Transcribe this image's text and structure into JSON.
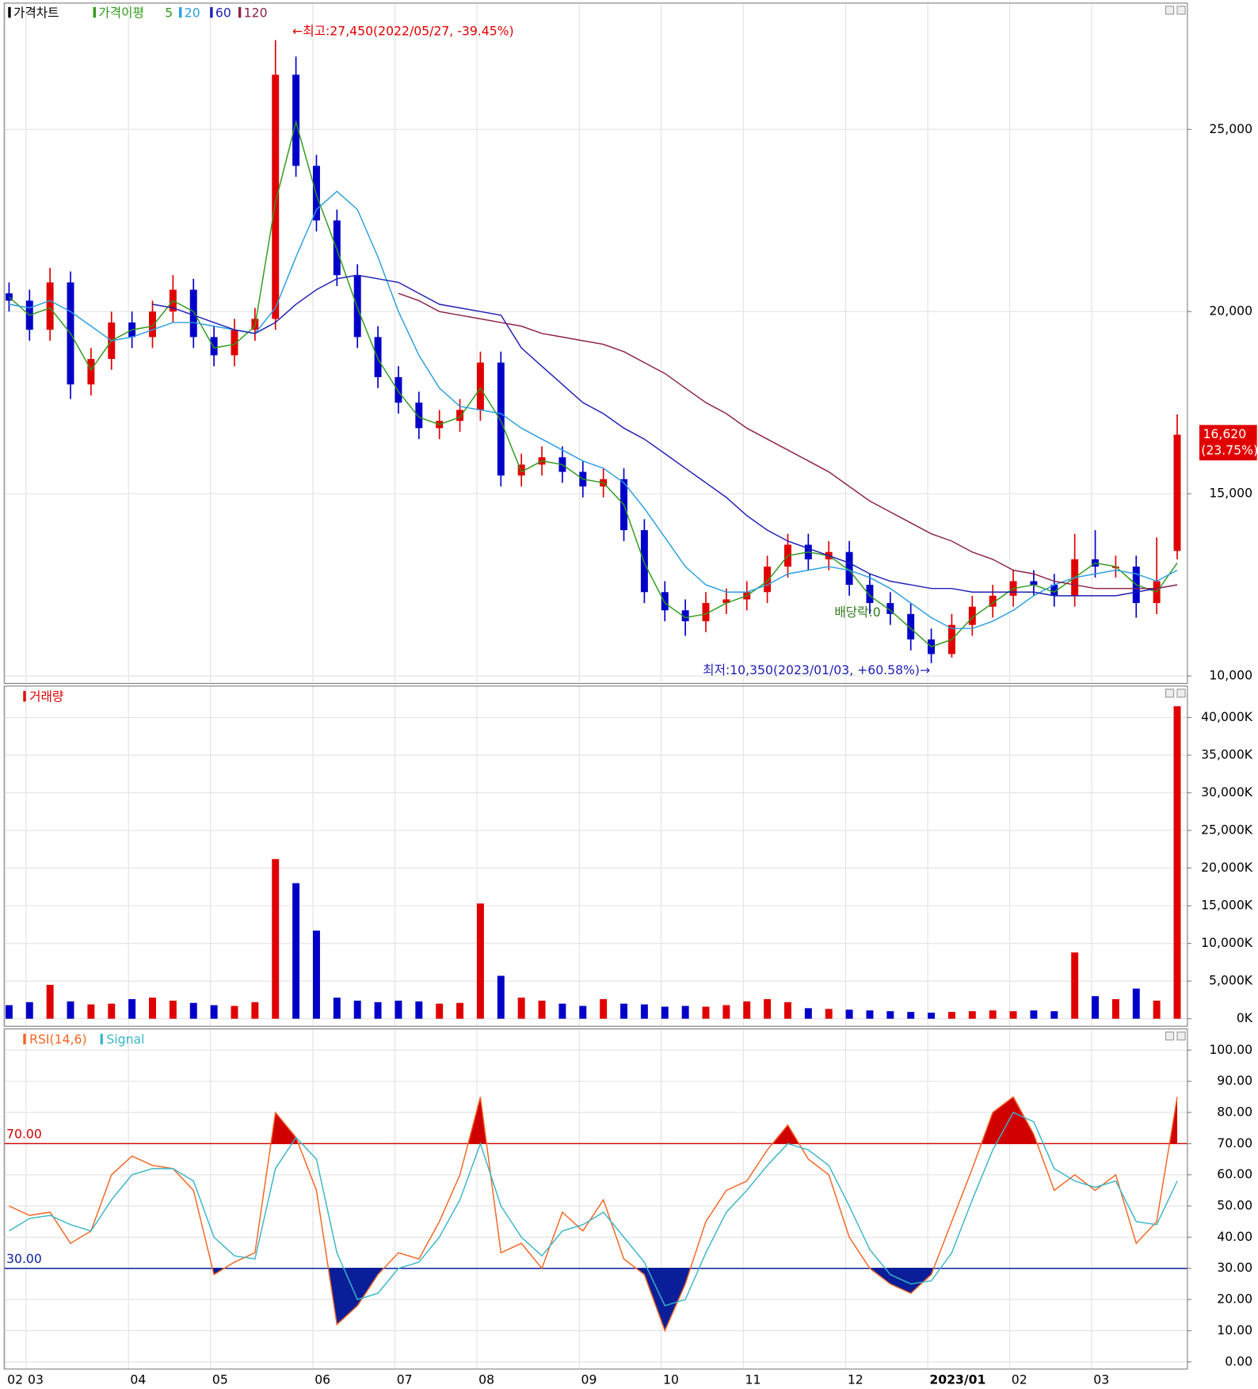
{
  "chart_data": [
    {
      "type": "candlestick",
      "title": "가격차트",
      "ma_title": "가격이평",
      "categories": [
        "02",
        "03",
        null,
        null,
        null,
        null,
        "04",
        null,
        null,
        null,
        "05",
        null,
        null,
        null,
        null,
        "06",
        null,
        null,
        null,
        "07",
        null,
        null,
        null,
        "08",
        null,
        null,
        null,
        null,
        "09",
        null,
        null,
        null,
        "10",
        null,
        null,
        null,
        "11",
        null,
        null,
        null,
        null,
        "12",
        null,
        null,
        null,
        "2023/01",
        null,
        null,
        null,
        "02",
        null,
        null,
        null,
        "03",
        null,
        null,
        null,
        null
      ],
      "open": [
        20500,
        20300,
        19500,
        20800,
        18000,
        18700,
        19700,
        19300,
        20000,
        20600,
        19300,
        18800,
        19500,
        19800,
        26500,
        24000,
        22500,
        21000,
        19300,
        18200,
        17500,
        16800,
        17000,
        17300,
        18600,
        15500,
        15800,
        16000,
        15600,
        15200,
        15400,
        14000,
        12300,
        11800,
        11500,
        12000,
        12100,
        12300,
        13000,
        13600,
        13200,
        13400,
        12500,
        12000,
        11700,
        11000,
        10600,
        11400,
        11900,
        12200,
        12600,
        12500,
        12200,
        13200,
        13000,
        13000,
        12000,
        13430
      ],
      "high": [
        20800,
        20600,
        21200,
        21100,
        19000,
        20000,
        20000,
        20300,
        21000,
        20900,
        19600,
        19800,
        20100,
        27450,
        27000,
        24300,
        22800,
        21300,
        19600,
        18500,
        17800,
        17300,
        17600,
        18900,
        18900,
        16100,
        16300,
        16300,
        15900,
        15700,
        15700,
        14300,
        12600,
        12100,
        12300,
        12400,
        12600,
        13300,
        13900,
        13900,
        13700,
        13700,
        12800,
        12300,
        12000,
        11300,
        11700,
        12200,
        12500,
        12900,
        12900,
        12800,
        13900,
        14000,
        13300,
        13300,
        13800,
        17180
      ],
      "low": [
        20000,
        19200,
        19200,
        17600,
        17700,
        18400,
        19000,
        19000,
        19700,
        19000,
        18500,
        18500,
        19200,
        19500,
        23700,
        22200,
        20700,
        19000,
        17900,
        17200,
        16500,
        16500,
        16700,
        17000,
        15200,
        15200,
        15500,
        15300,
        14900,
        14900,
        13700,
        12000,
        11500,
        11100,
        11200,
        11700,
        11800,
        12000,
        12700,
        12900,
        12900,
        12200,
        11700,
        11400,
        10700,
        10350,
        10500,
        11100,
        11600,
        11900,
        12200,
        11900,
        11900,
        12700,
        12700,
        11600,
        11700,
        13200
      ],
      "close": [
        20300,
        19500,
        20800,
        18000,
        18700,
        19700,
        19300,
        20000,
        20600,
        19300,
        18800,
        19500,
        19800,
        26500,
        24000,
        22500,
        21000,
        19300,
        18200,
        17500,
        16800,
        17000,
        17300,
        18600,
        15500,
        15800,
        16000,
        15600,
        15200,
        15400,
        14000,
        12300,
        11800,
        11500,
        12000,
        12100,
        12300,
        13000,
        13600,
        13200,
        13400,
        12500,
        12000,
        11700,
        11000,
        10600,
        11400,
        11900,
        12200,
        12600,
        12500,
        12200,
        13200,
        13000,
        13000,
        12000,
        12600,
        16620
      ],
      "up_color": "#e00000",
      "down_color": "#0000c8",
      "series": [
        {
          "name": "5",
          "color": "#2f9a1a",
          "values": [
            20400,
            19900,
            20100,
            19400,
            18400,
            19200,
            19500,
            19600,
            20300,
            20000,
            19000,
            19100,
            19600,
            23000,
            25200,
            23200,
            21700,
            20100,
            18700,
            17800,
            17100,
            16900,
            17100,
            17900,
            17000,
            15600,
            15900,
            15800,
            15400,
            15300,
            14700,
            13100,
            12000,
            11600,
            11700,
            12000,
            12200,
            12600,
            13300,
            13400,
            13300,
            12900,
            12200,
            11800,
            11300,
            10800,
            11000,
            11600,
            12000,
            12400,
            12500,
            12300,
            12700,
            13100,
            13000,
            12500,
            12300,
            13100
          ]
        },
        {
          "name": "20",
          "color": "#2a9ee0",
          "values": [
            20200,
            20100,
            20300,
            20000,
            19600,
            19200,
            19300,
            19500,
            19700,
            19700,
            19600,
            19500,
            19400,
            20100,
            21500,
            22800,
            23300,
            22800,
            21500,
            20000,
            18800,
            17900,
            17400,
            17300,
            17200,
            16800,
            16500,
            16200,
            15900,
            15700,
            15300,
            14600,
            13800,
            13000,
            12500,
            12300,
            12300,
            12500,
            12800,
            12900,
            13000,
            12900,
            12700,
            12400,
            12000,
            11600,
            11300,
            11300,
            11500,
            11800,
            12200,
            12500,
            12700,
            12800,
            12900,
            12800,
            12600,
            12900
          ]
        },
        {
          "name": "60",
          "color": "#1e1eb4",
          "values": [
            null,
            null,
            null,
            null,
            null,
            null,
            null,
            20200,
            20100,
            19900,
            19700,
            19500,
            19400,
            19700,
            20200,
            20600,
            20900,
            21000,
            20900,
            20800,
            20500,
            20200,
            20100,
            20000,
            19900,
            19000,
            18500,
            18000,
            17500,
            17200,
            16800,
            16500,
            16100,
            15700,
            15300,
            14900,
            14400,
            14000,
            13700,
            13500,
            13300,
            13100,
            12800,
            12600,
            12500,
            12400,
            12400,
            12300,
            12300,
            12300,
            12300,
            12200,
            12200,
            12200,
            12200,
            12300,
            12400,
            12500
          ]
        },
        {
          "name": "120",
          "color": "#8b2246",
          "values": [
            null,
            null,
            null,
            null,
            null,
            null,
            null,
            null,
            null,
            null,
            null,
            null,
            null,
            null,
            null,
            null,
            null,
            null,
            null,
            20500,
            20300,
            20000,
            19900,
            19800,
            19700,
            19600,
            19400,
            19300,
            19200,
            19100,
            18900,
            18600,
            18300,
            17900,
            17500,
            17200,
            16800,
            16500,
            16200,
            15900,
            15600,
            15200,
            14800,
            14500,
            14200,
            13900,
            13700,
            13400,
            13200,
            12900,
            12800,
            12600,
            12500,
            12400,
            12400,
            12400,
            12400,
            12500
          ]
        }
      ],
      "ylim": [
        9830,
        28430
      ],
      "yticks": [
        {
          "value": 10000,
          "label": "10,000"
        },
        {
          "value": 15000,
          "label": "15,000"
        },
        {
          "value": 20000,
          "label": "20,000"
        },
        {
          "value": 25000,
          "label": "25,000"
        }
      ],
      "grid": true,
      "annotations": [
        {
          "text": "←최고:27,450(2022/05/27, -39.45%)",
          "color": "#e00000"
        },
        {
          "text": "최저:10,350(2023/01/03, +60.58%)→",
          "color": "#1e1eb4"
        },
        {
          "text": "배당락:0",
          "color": "#2f7a1a"
        }
      ],
      "last_price_label": "16,620",
      "last_change_label": "(23.75%)"
    },
    {
      "type": "bar",
      "title": "거래량",
      "color": "#e00000",
      "values": [
        1800,
        2200,
        4500,
        2300,
        1900,
        2000,
        2600,
        2800,
        2400,
        2100,
        1800,
        1700,
        2200,
        21200,
        18000,
        11700,
        2800,
        2400,
        2200,
        2400,
        2300,
        2000,
        2100,
        15300,
        5700,
        2800,
        2400,
        2000,
        1700,
        2600,
        2000,
        1900,
        1600,
        1700,
        1600,
        1800,
        2300,
        2600,
        2200,
        1400,
        1300,
        1200,
        1100,
        1000,
        900,
        800,
        900,
        1000,
        1100,
        1000,
        1100,
        1000,
        8800,
        3000,
        2600,
        4000,
        2400,
        41500
      ],
      "ylim": [
        0,
        43760
      ],
      "yticks": [
        {
          "value": 0,
          "label": "0K"
        },
        {
          "value": 5000,
          "label": "5,000K"
        },
        {
          "value": 10000,
          "label": "10,000K"
        },
        {
          "value": 15000,
          "label": "15,000K"
        },
        {
          "value": 20000,
          "label": "20,000K"
        },
        {
          "value": 25000,
          "label": "25,000K"
        },
        {
          "value": 30000,
          "label": "30,000K"
        },
        {
          "value": 35000,
          "label": "35,000K"
        },
        {
          "value": 40000,
          "label": "40,000K"
        }
      ],
      "grid": true
    },
    {
      "type": "line",
      "title": "RSI(14,6)",
      "series": [
        {
          "name": "RSI(14,6)",
          "color": "#f26522",
          "values": [
            50,
            47,
            48,
            38,
            42,
            60,
            66,
            63,
            62,
            55,
            28,
            32,
            35,
            80,
            72,
            55,
            12,
            18,
            28,
            35,
            33,
            45,
            60,
            85,
            35,
            38,
            30,
            48,
            42,
            52,
            33,
            28,
            10,
            25,
            45,
            55,
            58,
            68,
            76,
            65,
            60,
            40,
            30,
            25,
            22,
            28,
            45,
            62,
            80,
            85,
            73,
            55,
            60,
            55,
            60,
            38,
            45,
            85
          ]
        },
        {
          "name": "Signal",
          "color": "#3ab5c8",
          "values": [
            42,
            46,
            47,
            44,
            42,
            52,
            60,
            62,
            62,
            58,
            40,
            34,
            33,
            62,
            72,
            65,
            35,
            20,
            22,
            30,
            32,
            40,
            52,
            70,
            50,
            40,
            34,
            42,
            44,
            48,
            40,
            32,
            18,
            20,
            35,
            48,
            55,
            63,
            70,
            68,
            63,
            50,
            36,
            28,
            25,
            26,
            35,
            52,
            68,
            80,
            77,
            62,
            58,
            56,
            58,
            45,
            44,
            58
          ]
        }
      ],
      "levels": [
        {
          "value": 70,
          "label": "70.00",
          "color": "#d00000"
        },
        {
          "value": 30,
          "label": "30.00",
          "color": "#0a1e9a"
        }
      ],
      "ylim": [
        -5,
        105.8
      ],
      "yticks": [
        {
          "value": 0,
          "label": "0.00"
        },
        {
          "value": 10,
          "label": "10.00"
        },
        {
          "value": 20,
          "label": "20.00"
        },
        {
          "value": 30,
          "label": "30.00"
        },
        {
          "value": 40,
          "label": "40.00"
        },
        {
          "value": 50,
          "label": "50.00"
        },
        {
          "value": 60,
          "label": "60.00"
        },
        {
          "value": 70,
          "label": "70.00"
        },
        {
          "value": 80,
          "label": "80.00"
        },
        {
          "value": 90,
          "label": "90.00"
        },
        {
          "value": 100,
          "label": "100.00"
        }
      ],
      "grid": true
    }
  ]
}
